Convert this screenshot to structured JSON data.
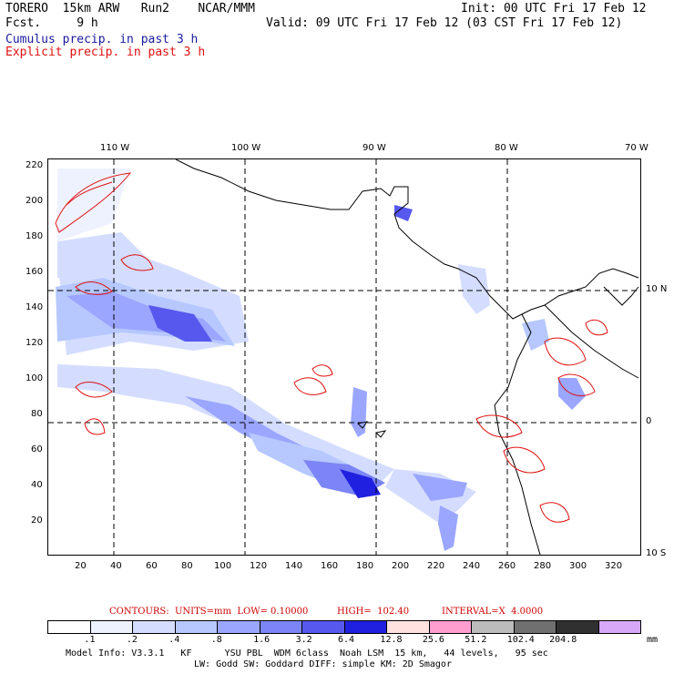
{
  "header": {
    "model_line": "TORERO  15km ARW   Run2    NCAR/MMM",
    "fcst_line": "Fcst.     9 h",
    "init_line": "Init: 00 UTC Fri 17 Feb 12",
    "valid_line": "Valid: 09 UTC Fri 17 Feb 12 (03 CST Fri 17 Feb 12)",
    "field1": "Cumulus precip. in past 3 h",
    "field2": "Explicit precip. in past 3 h"
  },
  "axes": {
    "top_lon_labels": [
      "110 W",
      "100 W",
      "90 W",
      "80 W",
      "70 W"
    ],
    "right_lat_labels": [
      "10 N",
      "0",
      "10 S"
    ],
    "left_y_labels": [
      "220",
      "200",
      "180",
      "160",
      "140",
      "120",
      "100",
      "80",
      "60",
      "40",
      "20"
    ],
    "bottom_x_labels": [
      "20",
      "40",
      "60",
      "80",
      "100",
      "120",
      "140",
      "160",
      "180",
      "200",
      "220",
      "240",
      "260",
      "280",
      "300",
      "320"
    ]
  },
  "contours": {
    "label": "CONTOURS:  UNITS=mm  LOW= 0.10000",
    "high": "HIGH=  102.40",
    "interval": "INTERVAL=X  4.0000"
  },
  "legend": {
    "colors": [
      "#ffffff",
      "#eef2ff",
      "#d4ddff",
      "#b6c8ff",
      "#9aa6ff",
      "#7b85f5",
      "#5658ee",
      "#2020e0",
      "#ffe2e0",
      "#ff9ecf",
      "#bcbcbc",
      "#707070",
      "#303030",
      "#d8a8f8"
    ],
    "ticks": [
      ".1",
      ".2",
      ".4",
      ".8",
      "1.6",
      "3.2",
      "6.4",
      "12.8",
      "25.6",
      "51.2",
      "102.4",
      "204.8"
    ],
    "unit": "mm"
  },
  "footer": {
    "line1": "Model Info: V3.3.1   KF      YSU PBL  WDM 6class  Noah LSM  15 km,   44 levels,   95 sec",
    "line2": "LW: Godd SW: Goddard DIFF: simple KM: 2D Smagor"
  }
}
